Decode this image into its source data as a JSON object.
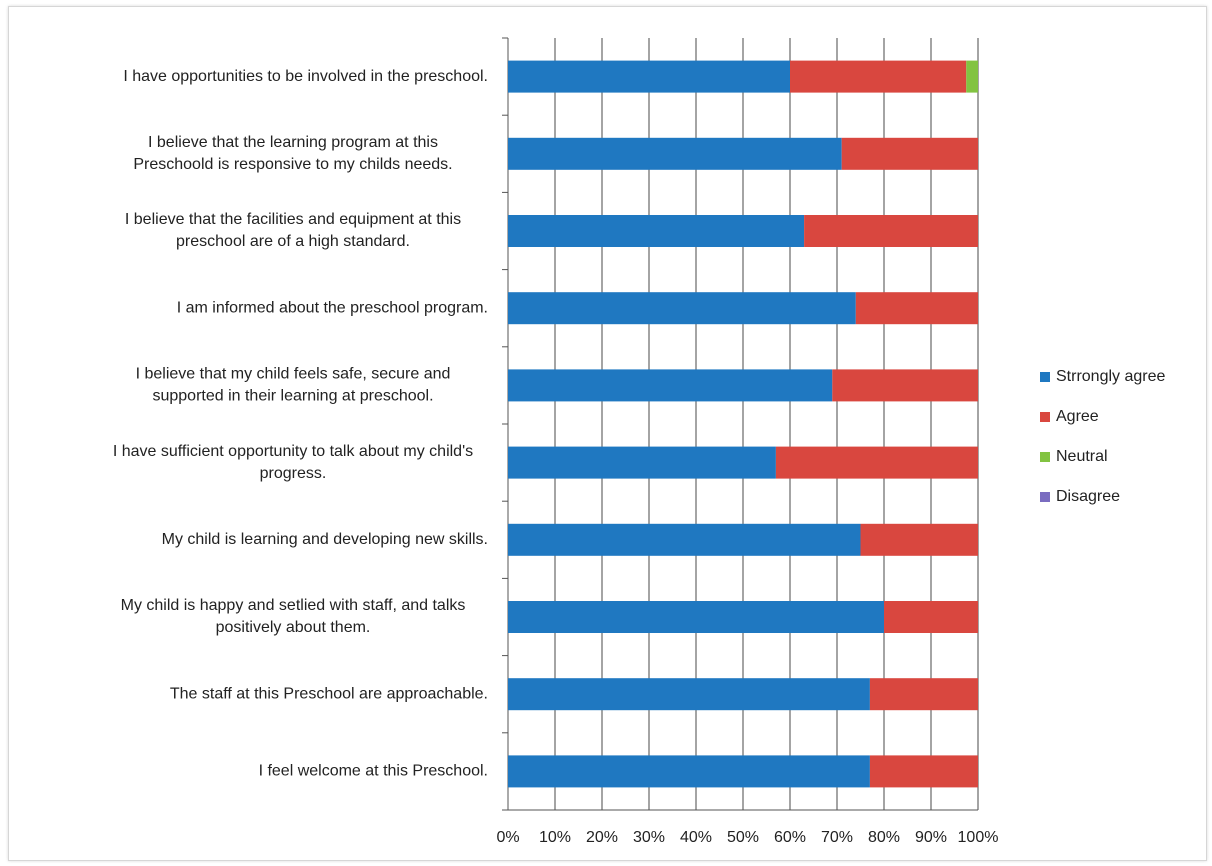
{
  "chart_data": {
    "type": "bar",
    "orientation": "horizontal",
    "stacking": "percent",
    "categories": [
      [
        "I have opportunities to be involved in the preschool."
      ],
      [
        "I believe that the learning program at this",
        "Preschoold is responsive to my childs needs."
      ],
      [
        "I believe that the facilities and equipment at this",
        "preschool are of a high standard."
      ],
      [
        "I am informed about the preschool program."
      ],
      [
        "I believe that my child feels safe, secure and",
        "supported in their learning at preschool."
      ],
      [
        "I have sufficient opportunity to talk about my child's",
        "progress."
      ],
      [
        "My child is learning and developing new skills."
      ],
      [
        "My child is happy and setlied with staff, and talks",
        "positively about them."
      ],
      [
        "The staff at this Preschool are approachable."
      ],
      [
        "I feel welcome at this Preschool."
      ]
    ],
    "series": [
      {
        "name": "Strrongly agree",
        "color": "#1f78c1",
        "values": [
          60,
          71,
          63,
          74,
          69,
          57,
          75,
          80,
          77,
          77
        ]
      },
      {
        "name": "Agree",
        "color": "#d9473f",
        "values": [
          37.5,
          29,
          37,
          26,
          31,
          43,
          25,
          20,
          23,
          23
        ]
      },
      {
        "name": "Neutral",
        "color": "#82c341",
        "values": [
          2.5,
          0,
          0,
          0,
          0,
          0,
          0,
          0,
          0,
          0
        ]
      },
      {
        "name": "Disagree",
        "color": "#7a6cc0",
        "values": [
          0,
          0,
          0,
          0,
          0,
          0,
          0,
          0,
          0,
          0
        ]
      }
    ],
    "xticks": [
      "0%",
      "10%",
      "20%",
      "30%",
      "40%",
      "50%",
      "60%",
      "70%",
      "80%",
      "90%",
      "100%"
    ],
    "xlim": [
      0,
      100
    ],
    "grid": true,
    "legend": "right"
  }
}
